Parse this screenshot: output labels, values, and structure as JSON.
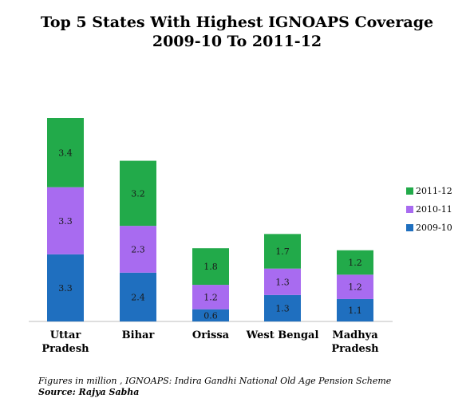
{
  "chart_data": {
    "type": "bar",
    "stacked": true,
    "title": "Top 5 States With Highest IGNOAPS Coverage",
    "subtitle": "2009-10 To 2011-12",
    "categories": [
      [
        "Uttar",
        "Pradesh"
      ],
      [
        "Bihar"
      ],
      [
        "Orissa"
      ],
      [
        "West Bengal"
      ],
      [
        "Madhya",
        "Pradesh"
      ]
    ],
    "series": [
      {
        "name": "2009-10",
        "color": "#1f6fbf",
        "values": [
          3.3,
          2.4,
          0.6,
          1.3,
          1.1
        ],
        "labels": [
          "3.3",
          "2.4",
          "0.6",
          "1.3",
          "1.1"
        ]
      },
      {
        "name": "2010-11",
        "color": "#a86bf0",
        "values": [
          3.3,
          2.3,
          1.2,
          1.3,
          1.2
        ],
        "labels": [
          "3.3",
          "2.3",
          "1.2",
          "1.3",
          "1.2"
        ]
      },
      {
        "name": "2011-12",
        "color": "#22aa4a",
        "values": [
          3.4,
          3.2,
          1.8,
          1.7,
          1.2
        ],
        "labels": [
          "3.4",
          "3.2",
          "1.8",
          "1.7",
          "1.2"
        ]
      }
    ],
    "ylim": [
      0,
      10
    ],
    "grid": false,
    "legend_position": "right"
  },
  "footnote": {
    "text": "Figures in million , IGNOAPS: Indira Gandhi National Old Age Pension Scheme",
    "source": "Source: Rajya Sabha"
  }
}
